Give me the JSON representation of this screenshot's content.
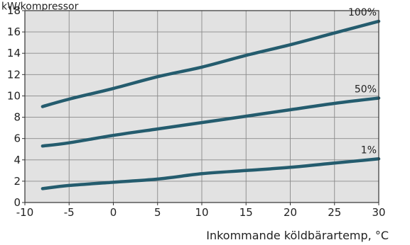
{
  "chart_data": {
    "type": "line",
    "title": "",
    "top_label": "kW/kompressor",
    "xlabel": "Inkommande köldbärartemp, °C",
    "ylabel": "",
    "xlim": [
      -10,
      30
    ],
    "ylim": [
      0,
      18
    ],
    "x_ticks": [
      -10,
      -5,
      0,
      5,
      10,
      15,
      20,
      25,
      30
    ],
    "y_ticks": [
      0,
      2,
      4,
      6,
      8,
      10,
      12,
      14,
      16,
      18
    ],
    "grid": true,
    "colors": {
      "plot_bg": "#e2e2e2",
      "line": "#245c6e",
      "grid": "#8a8a8a",
      "axis": "#333333"
    },
    "series": [
      {
        "name": "100%",
        "x": [
          -8,
          -5,
          0,
          5,
          10,
          15,
          20,
          25,
          30
        ],
        "y": [
          9.0,
          9.7,
          10.7,
          11.8,
          12.7,
          13.8,
          14.8,
          15.9,
          17.0
        ]
      },
      {
        "name": "50%",
        "x": [
          -8,
          -5,
          0,
          5,
          10,
          15,
          20,
          25,
          30
        ],
        "y": [
          5.3,
          5.6,
          6.3,
          6.9,
          7.5,
          8.1,
          8.7,
          9.3,
          9.8
        ]
      },
      {
        "name": "1%",
        "x": [
          -8,
          -5,
          0,
          5,
          10,
          15,
          20,
          25,
          30
        ],
        "y": [
          1.3,
          1.6,
          1.9,
          2.2,
          2.7,
          3.0,
          3.3,
          3.7,
          4.1
        ]
      }
    ]
  }
}
